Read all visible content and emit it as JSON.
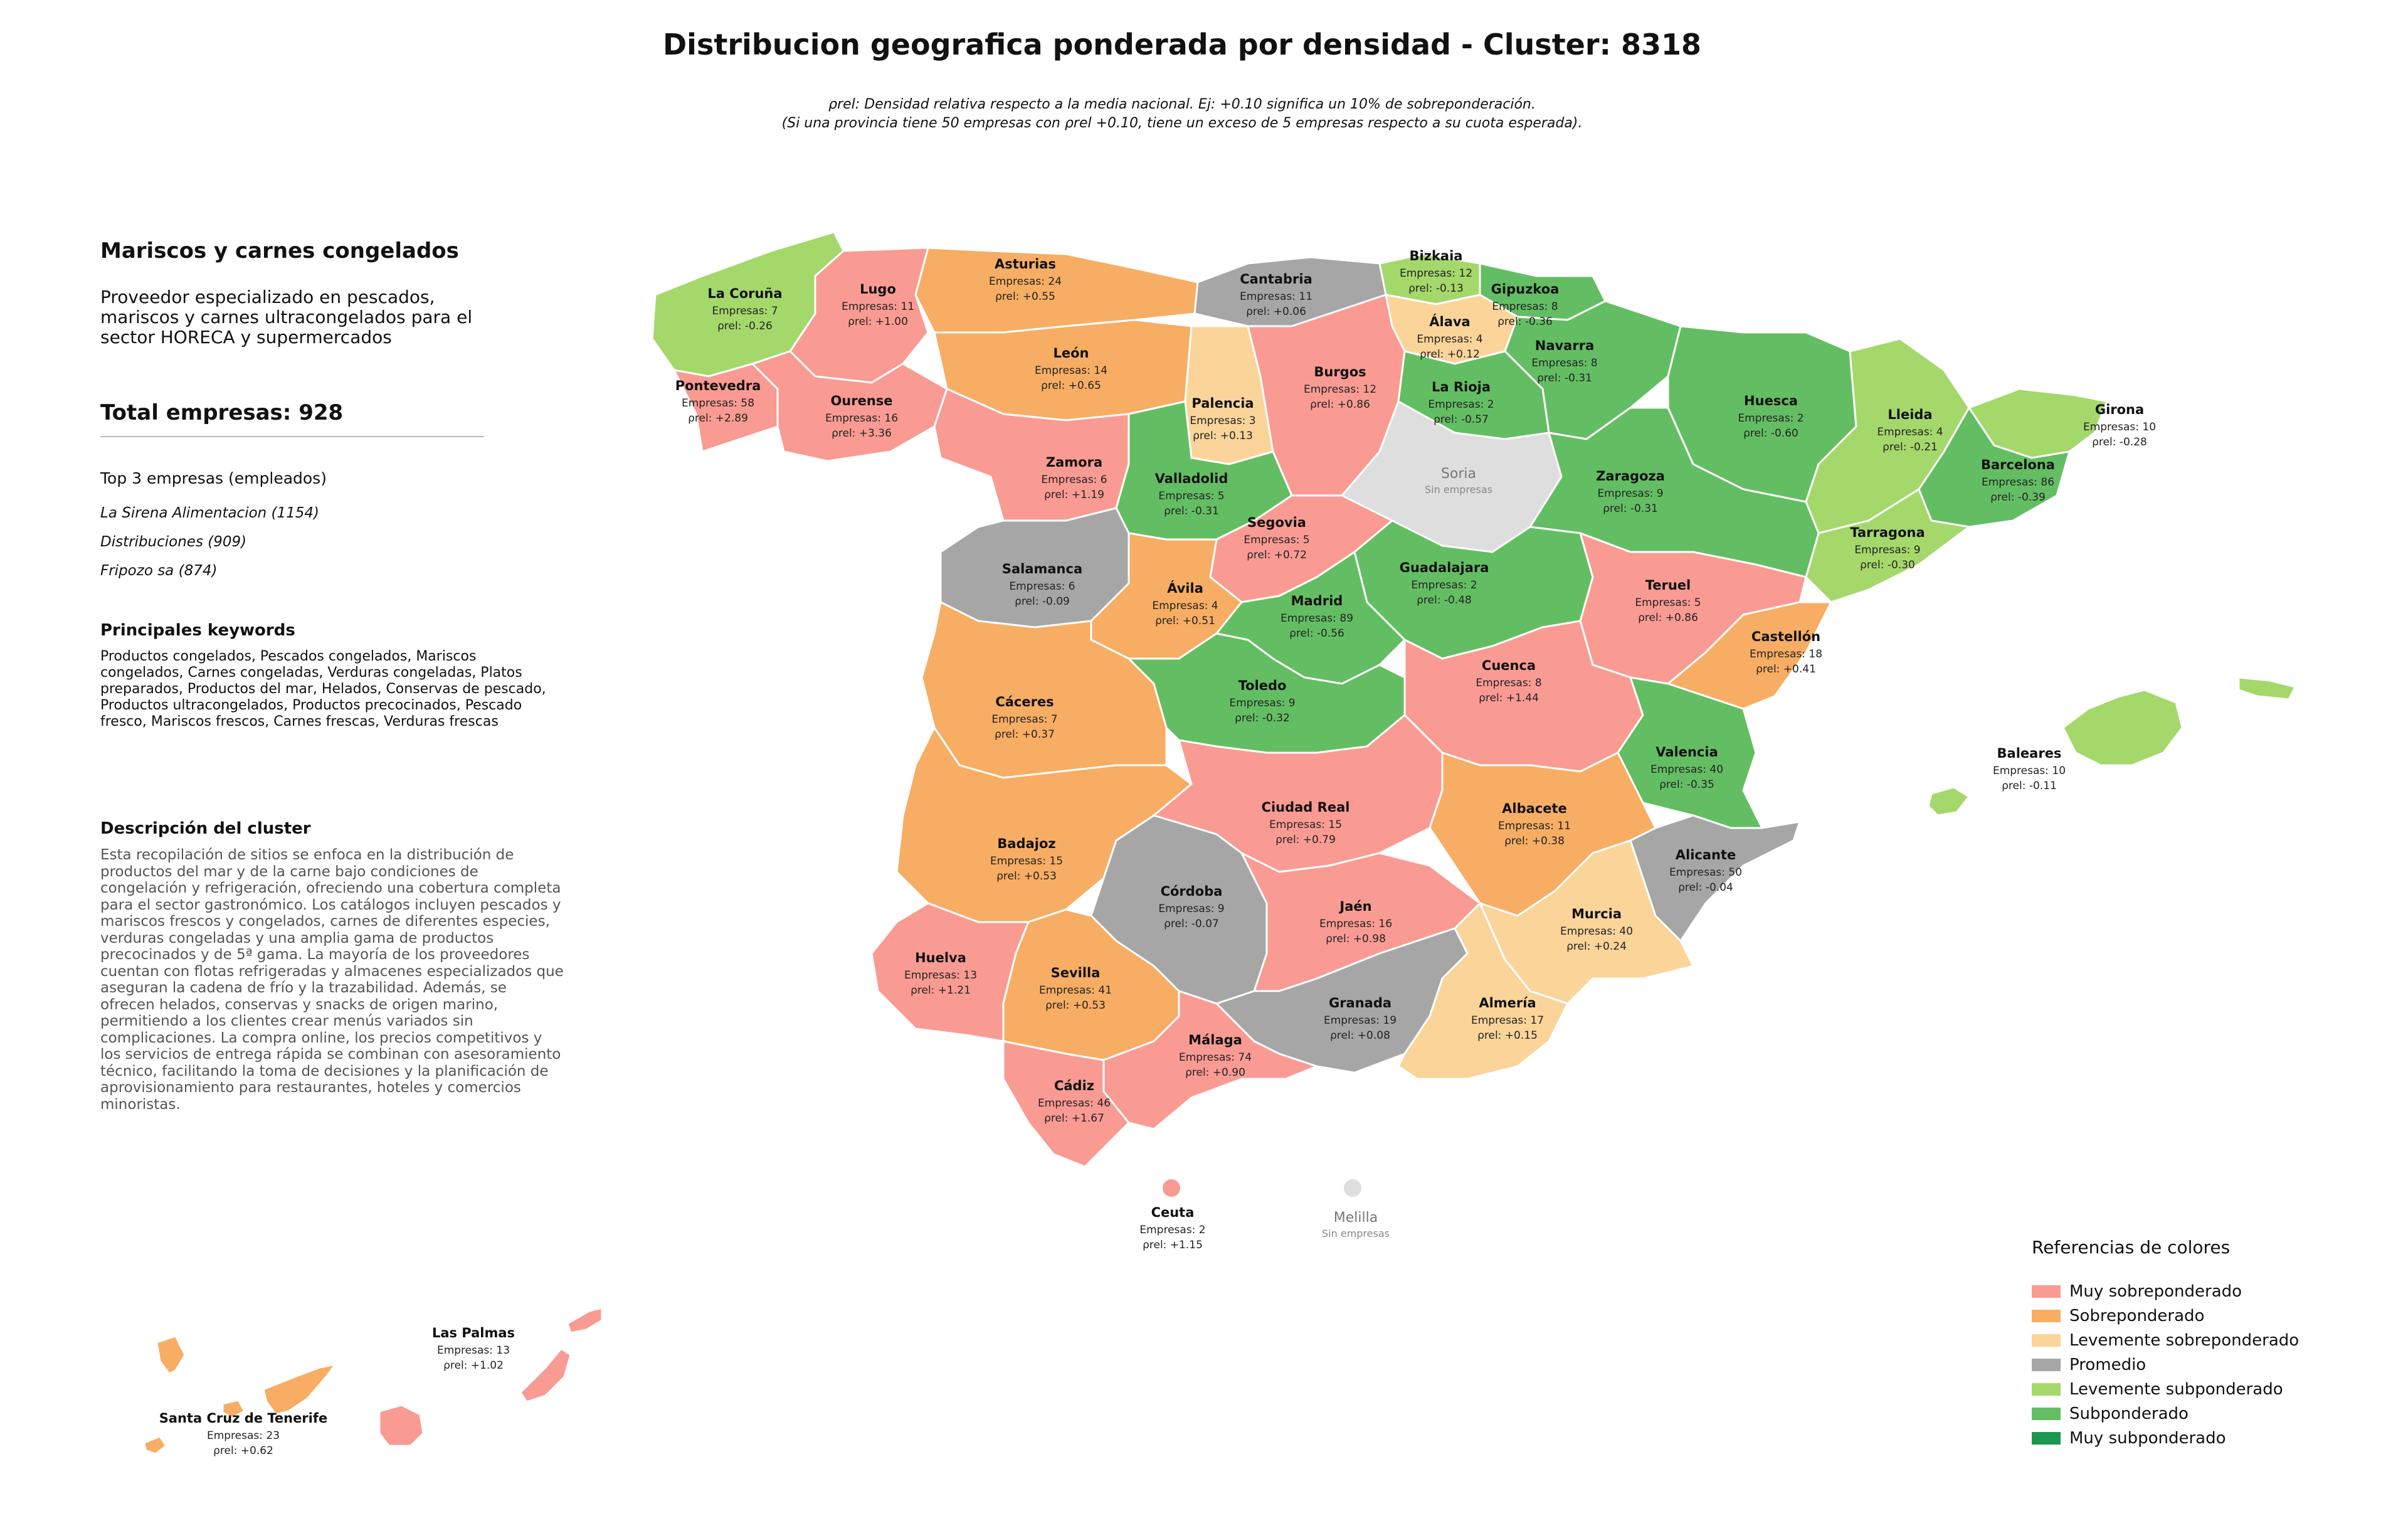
{
  "title": "Distribucion geografica ponderada por densidad - Cluster: 8318",
  "subtitle_line1": "ρrel: Densidad relativa respecto a la media nacional. Ej: +0.10 significa un 10% de sobreponderación.",
  "subtitle_line2": "(Si una provincia tiene 50 empresas con ρrel +0.10, tiene un exceso de 5 empresas respecto a su cuota esperada).",
  "panel": {
    "cluster_name": "Mariscos y carnes congelados",
    "cluster_summary": "Proveedor especializado en pescados, mariscos y carnes ultracongelados para el sector HORECA y supermercados",
    "total_label": "Total empresas: 928",
    "top_title": "Top 3 empresas (empleados)",
    "top_companies": [
      "La Sirena Alimentacion (1154)",
      "Distribuciones (909)",
      "Fripozo sa (874)"
    ],
    "keywords_title": "Principales keywords",
    "keywords": "Productos congelados, Pescados congelados, Mariscos congelados, Carnes congeladas, Verduras congeladas, Platos preparados, Productos del mar, Helados, Conservas de pescado, Productos ultracongelados, Productos precocinados, Pescado fresco, Mariscos frescos, Carnes frescas, Verduras frescas",
    "description_title": "Descripción del cluster",
    "description": "Esta recopilación de sitios se enfoca en la distribución de productos del mar y de la carne bajo condiciones de congelación y refrigeración, ofreciendo una cobertura completa para el sector gastronómico. Los catálogos incluyen pescados y mariscos frescos y congelados, carnes de diferentes especies, verduras congeladas y una amplia gama de productos precocinados y de 5ª gama. La mayoría de los proveedores cuentan con flotas refrigeradas y almacenes especializados que aseguran la cadena de frío y la trazabilidad. Además, se ofrecen helados, conservas y snacks de origen marino, permitiendo a los clientes crear menús variados sin complicaciones. La compra online, los precios competitivos y los servicios de entrega rápida se combinan con asesoramiento técnico, facilitando la toma de decisiones y la planificación de aprovisionamiento para restaurantes, hoteles y comercios minoristas."
  },
  "labels": {
    "companies_prefix": "Empresas: ",
    "rho": "ρrel: ",
    "no_companies": "Sin empresas"
  },
  "colors": {
    "muy_sobre": "#f99b93",
    "sobre": "#f7ad63",
    "lev_sobre": "#fbd49a",
    "promedio": "#a6a6a6",
    "lev_sub": "#a5d86b",
    "sub": "#63be63",
    "muy_sub": "#1a9850",
    "sin": "#dedede"
  },
  "legend": {
    "title": "Referencias de colores",
    "items": [
      {
        "label": "Muy sobreponderado",
        "color": "#f99b93"
      },
      {
        "label": "Sobreponderado",
        "color": "#f7ad63"
      },
      {
        "label": "Levemente sobreponderado",
        "color": "#fbd49a"
      },
      {
        "label": "Promedio",
        "color": "#a6a6a6"
      },
      {
        "label": "Levemente subponderado",
        "color": "#a5d86b"
      },
      {
        "label": "Subponderado",
        "color": "#63be63"
      },
      {
        "label": "Muy subponderado",
        "color": "#1a9850"
      }
    ]
  },
  "provinces": [
    {
      "name": "La Coruña",
      "companies": 7,
      "rho": "-0.26",
      "cls": "lev_sub"
    },
    {
      "name": "Lugo",
      "companies": 11,
      "rho": "+1.00",
      "cls": "muy_sobre"
    },
    {
      "name": "Asturias",
      "companies": 24,
      "rho": "+0.55",
      "cls": "sobre"
    },
    {
      "name": "Cantabria",
      "companies": 11,
      "rho": "+0.06",
      "cls": "promedio"
    },
    {
      "name": "Bizkaia",
      "companies": 12,
      "rho": "-0.13",
      "cls": "lev_sub"
    },
    {
      "name": "Gipuzkoa",
      "companies": 8,
      "rho": "-0.36",
      "cls": "sub"
    },
    {
      "name": "Álava",
      "companies": 4,
      "rho": "+0.12",
      "cls": "lev_sobre"
    },
    {
      "name": "Navarra",
      "companies": 8,
      "rho": "-0.31",
      "cls": "sub"
    },
    {
      "name": "Pontevedra",
      "companies": 58,
      "rho": "+2.89",
      "cls": "muy_sobre"
    },
    {
      "name": "Ourense",
      "companies": 16,
      "rho": "+3.36",
      "cls": "muy_sobre"
    },
    {
      "name": "León",
      "companies": 14,
      "rho": "+0.65",
      "cls": "sobre"
    },
    {
      "name": "Palencia",
      "companies": 3,
      "rho": "+0.13",
      "cls": "lev_sobre"
    },
    {
      "name": "Burgos",
      "companies": 12,
      "rho": "+0.86",
      "cls": "muy_sobre"
    },
    {
      "name": "La Rioja",
      "companies": 2,
      "rho": "-0.57",
      "cls": "sub"
    },
    {
      "name": "Huesca",
      "companies": 2,
      "rho": "-0.60",
      "cls": "sub"
    },
    {
      "name": "Lleida",
      "companies": 4,
      "rho": "-0.21",
      "cls": "lev_sub"
    },
    {
      "name": "Girona",
      "companies": 10,
      "rho": "-0.28",
      "cls": "lev_sub"
    },
    {
      "name": "Barcelona",
      "companies": 86,
      "rho": "-0.39",
      "cls": "sub"
    },
    {
      "name": "Zamora",
      "companies": 6,
      "rho": "+1.19",
      "cls": "muy_sobre"
    },
    {
      "name": "Valladolid",
      "companies": 5,
      "rho": "-0.31",
      "cls": "sub"
    },
    {
      "name": "Soria",
      "companies": null,
      "rho": null,
      "cls": "sin"
    },
    {
      "name": "Zaragoza",
      "companies": 9,
      "rho": "-0.31",
      "cls": "sub"
    },
    {
      "name": "Tarragona",
      "companies": 9,
      "rho": "-0.30",
      "cls": "lev_sub"
    },
    {
      "name": "Salamanca",
      "companies": 6,
      "rho": "-0.09",
      "cls": "promedio"
    },
    {
      "name": "Segovia",
      "companies": 5,
      "rho": "+0.72",
      "cls": "muy_sobre"
    },
    {
      "name": "Ávila",
      "companies": 4,
      "rho": "+0.51",
      "cls": "sobre"
    },
    {
      "name": "Guadalajara",
      "companies": 2,
      "rho": "-0.48",
      "cls": "sub"
    },
    {
      "name": "Madrid",
      "companies": 89,
      "rho": "-0.56",
      "cls": "sub"
    },
    {
      "name": "Teruel",
      "companies": 5,
      "rho": "+0.86",
      "cls": "muy_sobre"
    },
    {
      "name": "Castellón",
      "companies": 18,
      "rho": "+0.41",
      "cls": "sobre"
    },
    {
      "name": "Cáceres",
      "companies": 7,
      "rho": "+0.37",
      "cls": "sobre"
    },
    {
      "name": "Toledo",
      "companies": 9,
      "rho": "-0.32",
      "cls": "sub"
    },
    {
      "name": "Cuenca",
      "companies": 8,
      "rho": "+1.44",
      "cls": "muy_sobre"
    },
    {
      "name": "Valencia",
      "companies": 40,
      "rho": "-0.35",
      "cls": "sub"
    },
    {
      "name": "Baleares",
      "companies": 10,
      "rho": "-0.11",
      "cls": "lev_sub"
    },
    {
      "name": "Badajoz",
      "companies": 15,
      "rho": "+0.53",
      "cls": "sobre"
    },
    {
      "name": "Ciudad Real",
      "companies": 15,
      "rho": "+0.79",
      "cls": "muy_sobre"
    },
    {
      "name": "Albacete",
      "companies": 11,
      "rho": "+0.38",
      "cls": "sobre"
    },
    {
      "name": "Alicante",
      "companies": 50,
      "rho": "-0.04",
      "cls": "promedio"
    },
    {
      "name": "Córdoba",
      "companies": 9,
      "rho": "-0.07",
      "cls": "promedio"
    },
    {
      "name": "Jaén",
      "companies": 16,
      "rho": "+0.98",
      "cls": "muy_sobre"
    },
    {
      "name": "Murcia",
      "companies": 40,
      "rho": "+0.24",
      "cls": "lev_sobre"
    },
    {
      "name": "Huelva",
      "companies": 13,
      "rho": "+1.21",
      "cls": "muy_sobre"
    },
    {
      "name": "Sevilla",
      "companies": 41,
      "rho": "+0.53",
      "cls": "sobre"
    },
    {
      "name": "Granada",
      "companies": 19,
      "rho": "+0.08",
      "cls": "promedio"
    },
    {
      "name": "Almería",
      "companies": 17,
      "rho": "+0.15",
      "cls": "lev_sobre"
    },
    {
      "name": "Málaga",
      "companies": 74,
      "rho": "+0.90",
      "cls": "muy_sobre"
    },
    {
      "name": "Cádiz",
      "companies": 46,
      "rho": "+1.67",
      "cls": "muy_sobre"
    },
    {
      "name": "Ceuta",
      "companies": 2,
      "rho": "+1.15",
      "cls": "muy_sobre"
    },
    {
      "name": "Melilla",
      "companies": null,
      "rho": null,
      "cls": "sin"
    },
    {
      "name": "Las Palmas",
      "companies": 13,
      "rho": "+1.02",
      "cls": "muy_sobre"
    },
    {
      "name": "Santa Cruz de Tenerife",
      "companies": 23,
      "rho": "+0.62",
      "cls": "sobre"
    }
  ]
}
